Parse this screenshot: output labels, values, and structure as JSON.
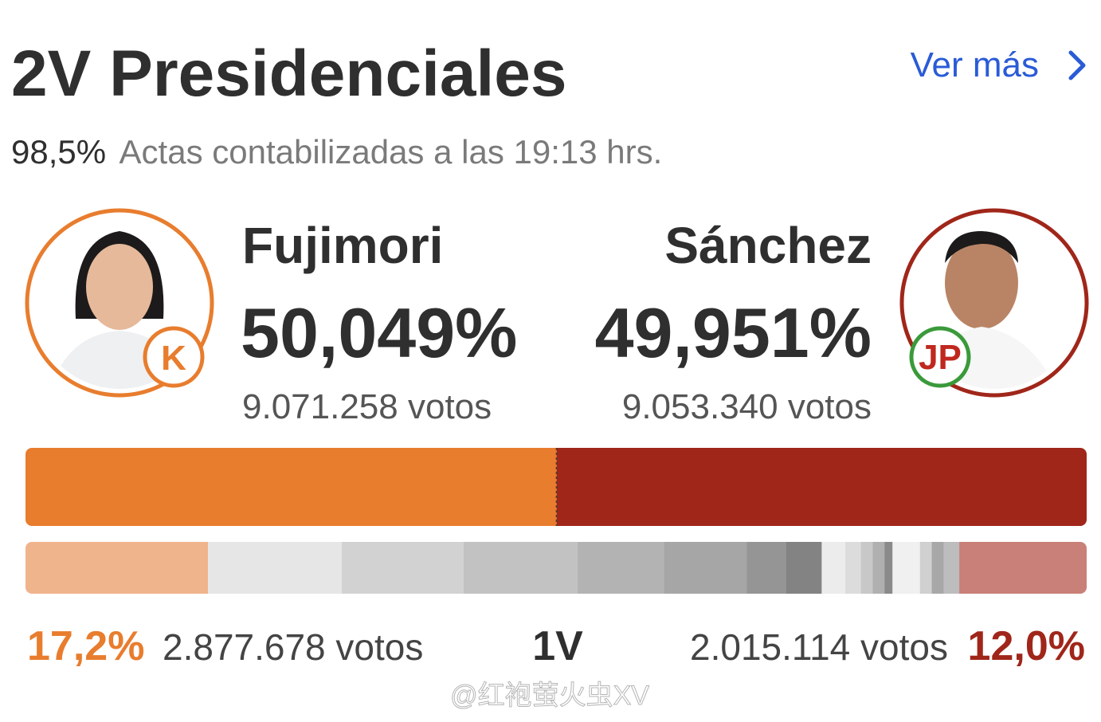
{
  "header": {
    "title": "2V Presidenciales",
    "link": "Ver más",
    "counted": "98,5%",
    "counted_text": "Actas contabilizadas a las 19:13 hrs."
  },
  "candidates": [
    {
      "name": "Fujimori",
      "party_logo": "K",
      "percent": 50.049,
      "percent_label": "50,049%",
      "votes": "9.071.258 votos",
      "color": "#e87d2e",
      "light_color": "#f0b48c",
      "first_round": {
        "percent": 17.2,
        "percent_label": "17,2%",
        "votes": "2.877.678 votos"
      }
    },
    {
      "name": "Sánchez",
      "party_logo": "JP",
      "percent": 49.951,
      "percent_label": "49,951%",
      "votes": "9.053.340 votos",
      "color": "#a0261a",
      "light_color": "#c98078",
      "first_round": {
        "percent": 12.0,
        "percent_label": "12,0%",
        "votes": "2.015.114 votos"
      }
    }
  ],
  "first_round_label": "1V",
  "watermark": "@红袍萤火虫XV"
}
